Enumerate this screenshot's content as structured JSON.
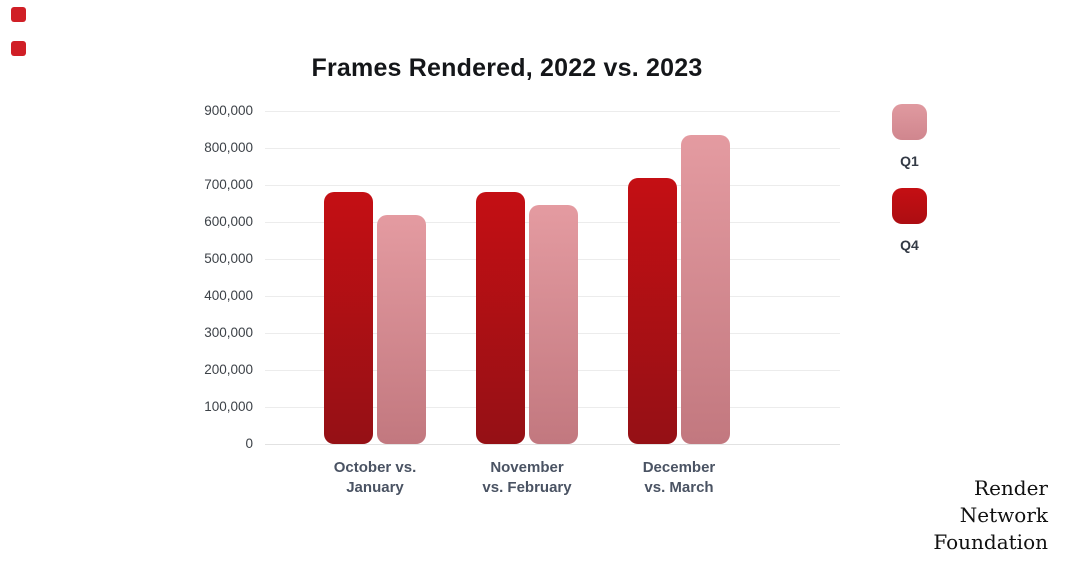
{
  "title": "Frames Rendered, 2022 vs. 2023",
  "chart_data": {
    "type": "bar",
    "title": "Frames Rendered, 2022 vs. 2023",
    "categories": [
      "October vs. January",
      "November vs. February",
      "December vs. March"
    ],
    "category_label_lines": [
      [
        "October vs.",
        "January"
      ],
      [
        "November",
        "vs. February"
      ],
      [
        "December",
        "vs. March"
      ]
    ],
    "series": [
      {
        "name": "Q4",
        "values": [
          680000,
          680000,
          720000
        ],
        "color_top": "#c40f14",
        "color_bottom": "#951015"
      },
      {
        "name": "Q1",
        "values": [
          620000,
          645000,
          835000
        ],
        "color_top": "#e49ba1",
        "color_bottom": "#c2787f"
      }
    ],
    "ylim": [
      0,
      900000
    ],
    "ytick_step": 100000,
    "ytick_labels": [
      "900,000",
      "800,000",
      "700,000",
      "600,000",
      "500,000",
      "400,000",
      "300,000",
      "200,000",
      "100,000",
      "0"
    ],
    "grid": true,
    "legend_position": "right"
  },
  "legend": {
    "items": [
      {
        "label": "Q1",
        "color_top": "#e09aa0",
        "color_bottom": "#d0868e"
      },
      {
        "label": "Q4",
        "color_top": "#c50f13",
        "color_bottom": "#ac0d12"
      }
    ]
  },
  "footer": {
    "lines": [
      "Render",
      "Network",
      "Foundation"
    ]
  },
  "decor": {
    "corner_square_color": "#d01f26"
  },
  "colors": {
    "gridline": "#ececec",
    "axis_line": "#e2e2e2",
    "y_label": "#3d4248",
    "x_label": "#4a5363",
    "title": "#141619",
    "footer_text": "#111111"
  }
}
